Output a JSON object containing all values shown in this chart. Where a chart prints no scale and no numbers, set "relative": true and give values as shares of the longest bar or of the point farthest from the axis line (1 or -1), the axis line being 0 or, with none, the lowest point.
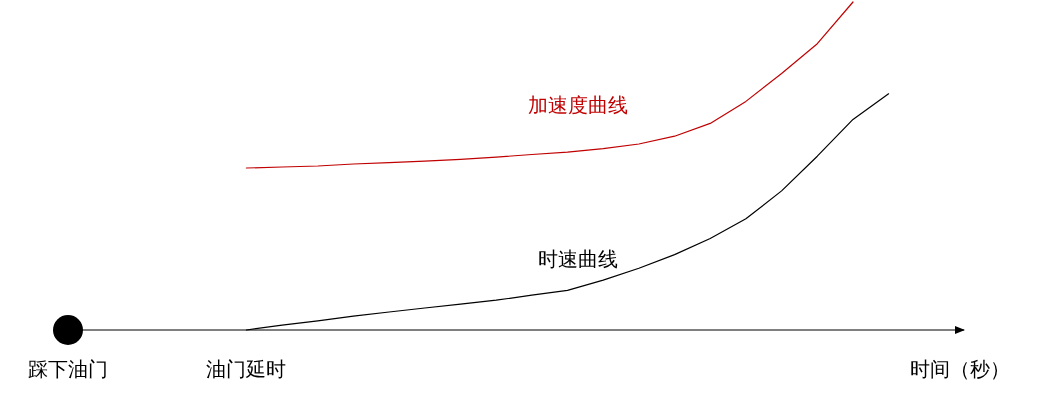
{
  "chart_data": {
    "type": "line",
    "relative": true,
    "xlabel": "时间（秒）",
    "categories": [
      "踩下油门",
      null,
      null,
      null,
      null,
      "油门延时",
      null,
      null,
      null,
      null,
      null,
      null,
      null,
      null,
      null,
      null,
      null,
      null,
      null,
      null,
      null,
      null,
      null,
      null,
      null,
      null
    ],
    "series": [
      {
        "name": "加速度曲线",
        "color": "#c00000",
        "values": [
          null,
          null,
          null,
          null,
          null,
          0.494,
          0.497,
          0.5,
          0.506,
          0.51,
          0.515,
          0.52,
          0.527,
          0.535,
          0.542,
          0.553,
          0.567,
          0.591,
          0.63,
          0.697,
          0.782,
          0.873,
          1,
          null,
          null,
          null
        ]
      },
      {
        "name": "时速曲线",
        "color": "#000000",
        "values": [
          null,
          null,
          null,
          null,
          null,
          0,
          0.015,
          0.028,
          0.042,
          0.055,
          0.067,
          0.079,
          0.091,
          0.106,
          0.121,
          0.152,
          0.188,
          0.23,
          0.279,
          0.339,
          0.424,
          0.53,
          0.642,
          0.72,
          null,
          null
        ]
      }
    ]
  }
}
